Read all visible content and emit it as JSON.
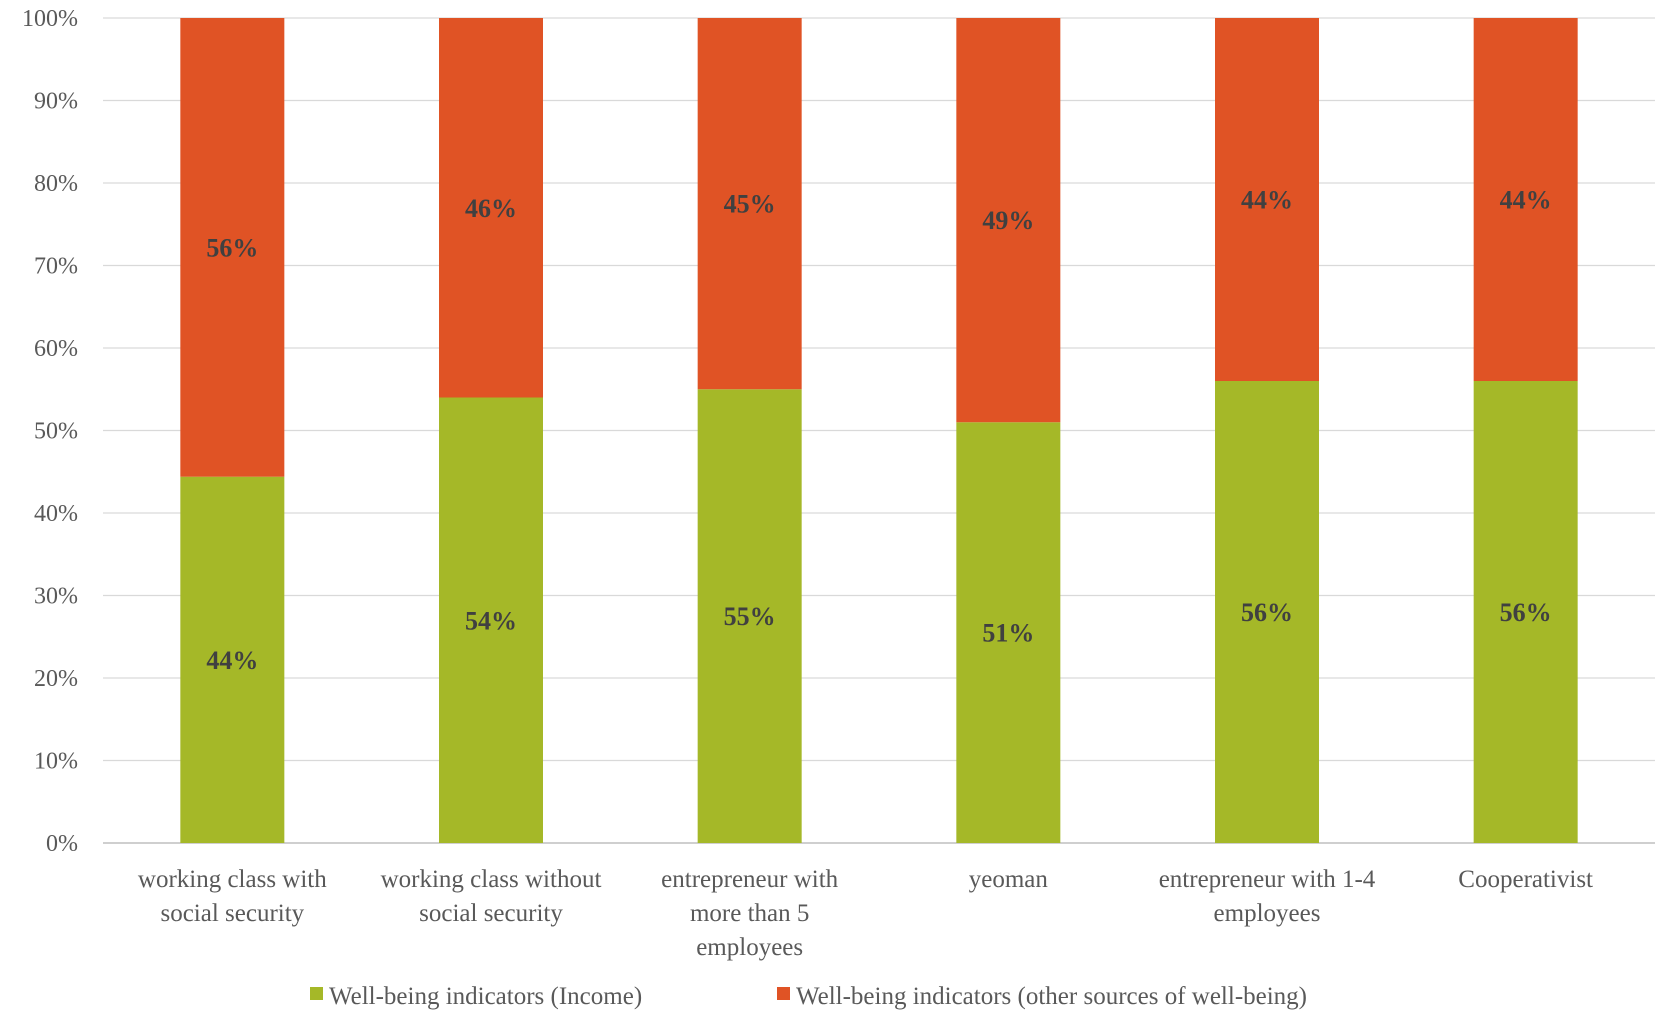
{
  "chart_data": {
    "type": "bar",
    "stacked": true,
    "percent": true,
    "categories": [
      [
        "working class with",
        "social security"
      ],
      [
        "working class without",
        "social security"
      ],
      [
        "entrepreneur with",
        "more than 5",
        "employees"
      ],
      [
        "yeoman"
      ],
      [
        "entrepreneur with 1-4",
        "employees"
      ],
      [
        "Cooperativist"
      ]
    ],
    "series": [
      {
        "name": "Well-being indicators (Income)",
        "color": "#A5B828",
        "values": [
          44.4,
          54,
          55,
          51,
          56,
          56
        ],
        "labels": [
          "44%",
          "54%",
          "55%",
          "51%",
          "56%",
          "56%"
        ]
      },
      {
        "name": "Well-being indicators (other sources of well-being)",
        "color": "#E05325",
        "values": [
          55.6,
          46,
          45,
          49,
          44,
          44
        ],
        "labels": [
          "56%",
          "46%",
          "45%",
          "49%",
          "44%",
          "44%"
        ]
      }
    ],
    "y_ticks": [
      "0%",
      "10%",
      "20%",
      "30%",
      "40%",
      "50%",
      "60%",
      "70%",
      "80%",
      "90%",
      "100%"
    ],
    "ylim": [
      0,
      100
    ],
    "grid": true,
    "legend_position": "bottom"
  }
}
